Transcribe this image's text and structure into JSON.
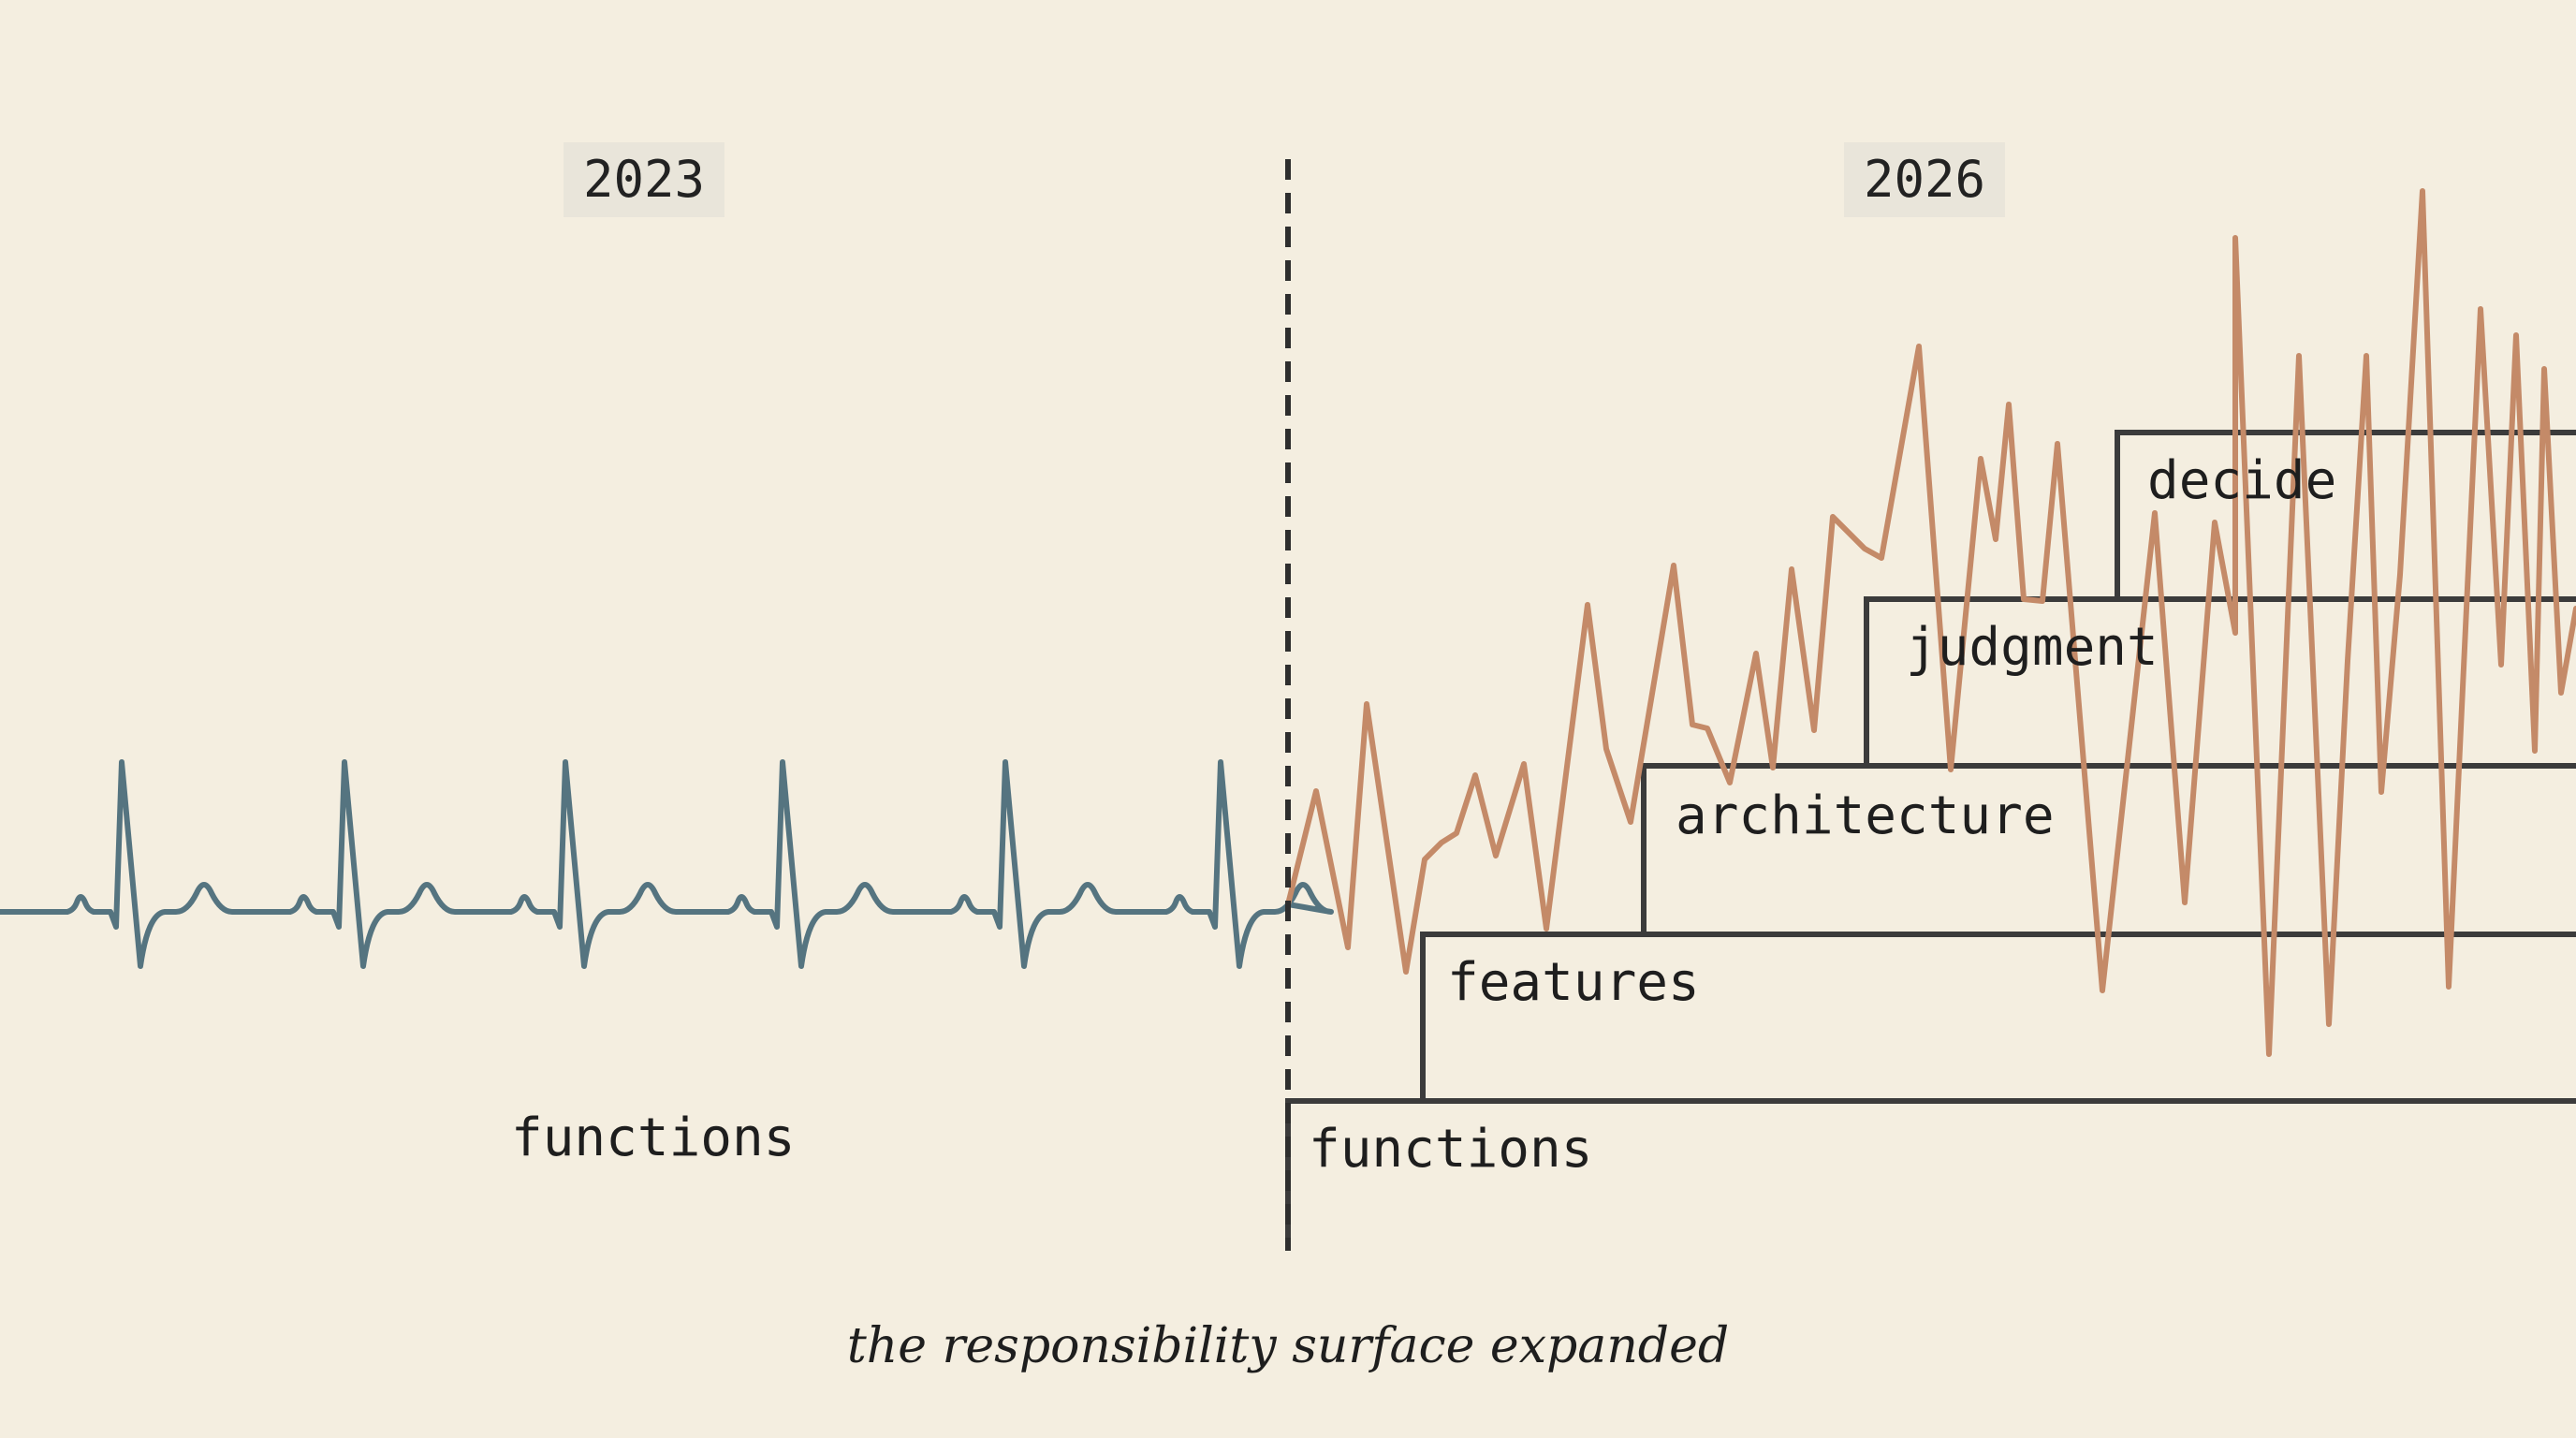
{
  "years": {
    "before": "2023",
    "after": "2026"
  },
  "left_label": "functions",
  "layers": [
    {
      "id": "functions",
      "label": "functions"
    },
    {
      "id": "features",
      "label": "features"
    },
    {
      "id": "architecture",
      "label": "architecture"
    },
    {
      "id": "judgment",
      "label": "judgment"
    },
    {
      "id": "decide",
      "label": "decide"
    }
  ],
  "caption": "the responsibility surface expanded",
  "colors": {
    "background": "#f4eee0",
    "calm_line": "#557480",
    "chaotic_line": "#c48a68",
    "box_stroke": "#3b3b3b",
    "divider": "#2e2e2e",
    "badge_bg": "#e9e5da",
    "text": "#1e1e1e"
  }
}
